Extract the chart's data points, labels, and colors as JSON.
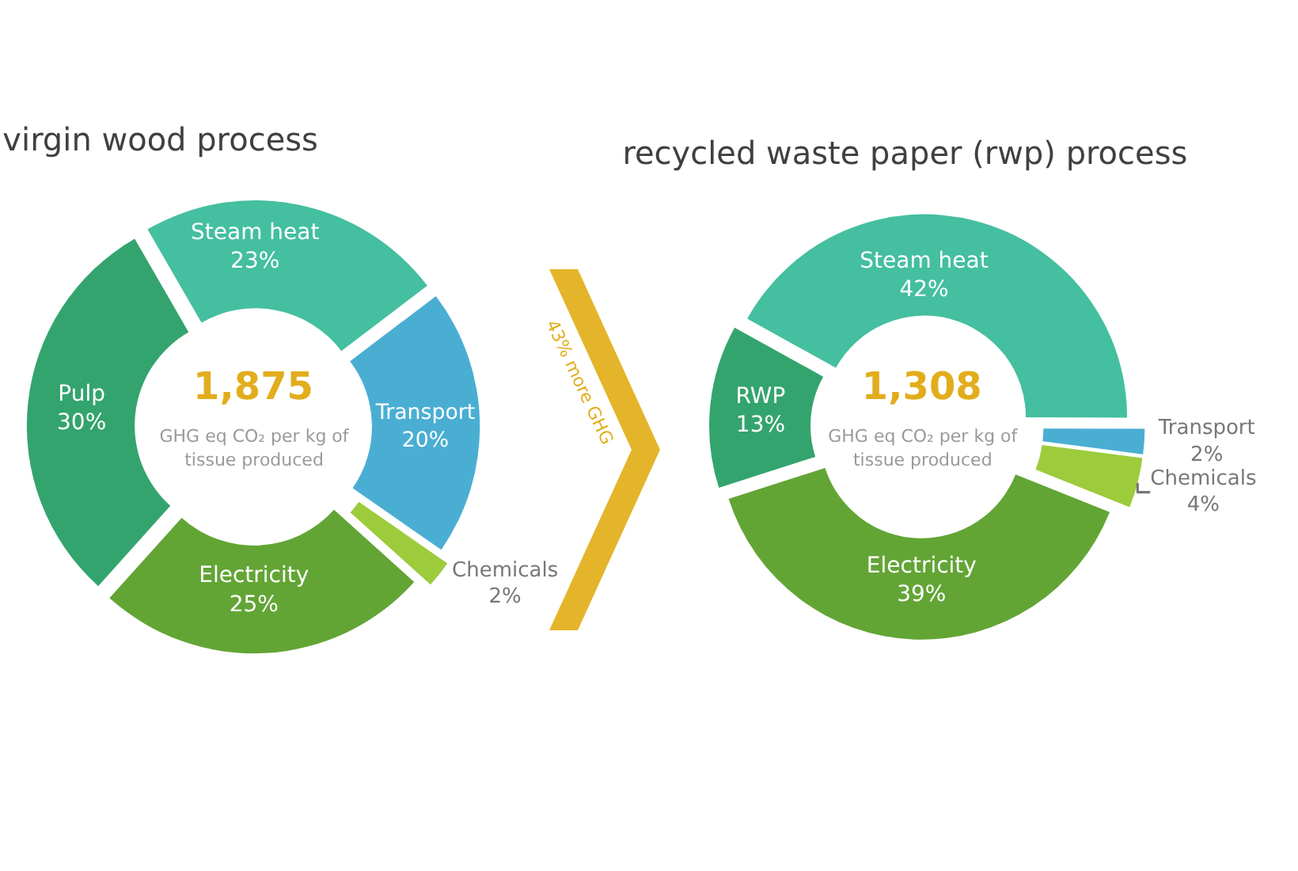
{
  "chart_data": [
    {
      "type": "donut",
      "title": "virgin wood process",
      "categories": [
        "Steam heat",
        "Transport",
        "Chemicals",
        "Electricity",
        "Pulp"
      ],
      "values": [
        23,
        20,
        2,
        25,
        30
      ],
      "value_labels": [
        "23%",
        "20%",
        "2%",
        "25%",
        "30%"
      ],
      "colors": [
        "#44bf9f",
        "#4aaed3",
        "#9ccb3b",
        "#62a535",
        "#34a46e"
      ],
      "annotations": [
        "1,875",
        "GHG eq CO₂ per kg of tissue produced",
        "43% more GHG"
      ]
    },
    {
      "type": "donut",
      "title": "recycled waste paper (rwp) process",
      "categories": [
        "Steam heat",
        "Transport",
        "Chemicals",
        "Electricity",
        "RWP"
      ],
      "values": [
        42,
        2,
        4,
        39,
        13
      ],
      "value_labels": [
        "42%",
        "2%",
        "4%",
        "39%",
        "13%"
      ],
      "colors": [
        "#44bf9f",
        "#4aaed3",
        "#9ccb3b",
        "#62a535",
        "#34a46e"
      ],
      "annotations": [
        "1,308",
        "GHG eq CO₂ per kg of tissue produced"
      ]
    }
  ]
}
